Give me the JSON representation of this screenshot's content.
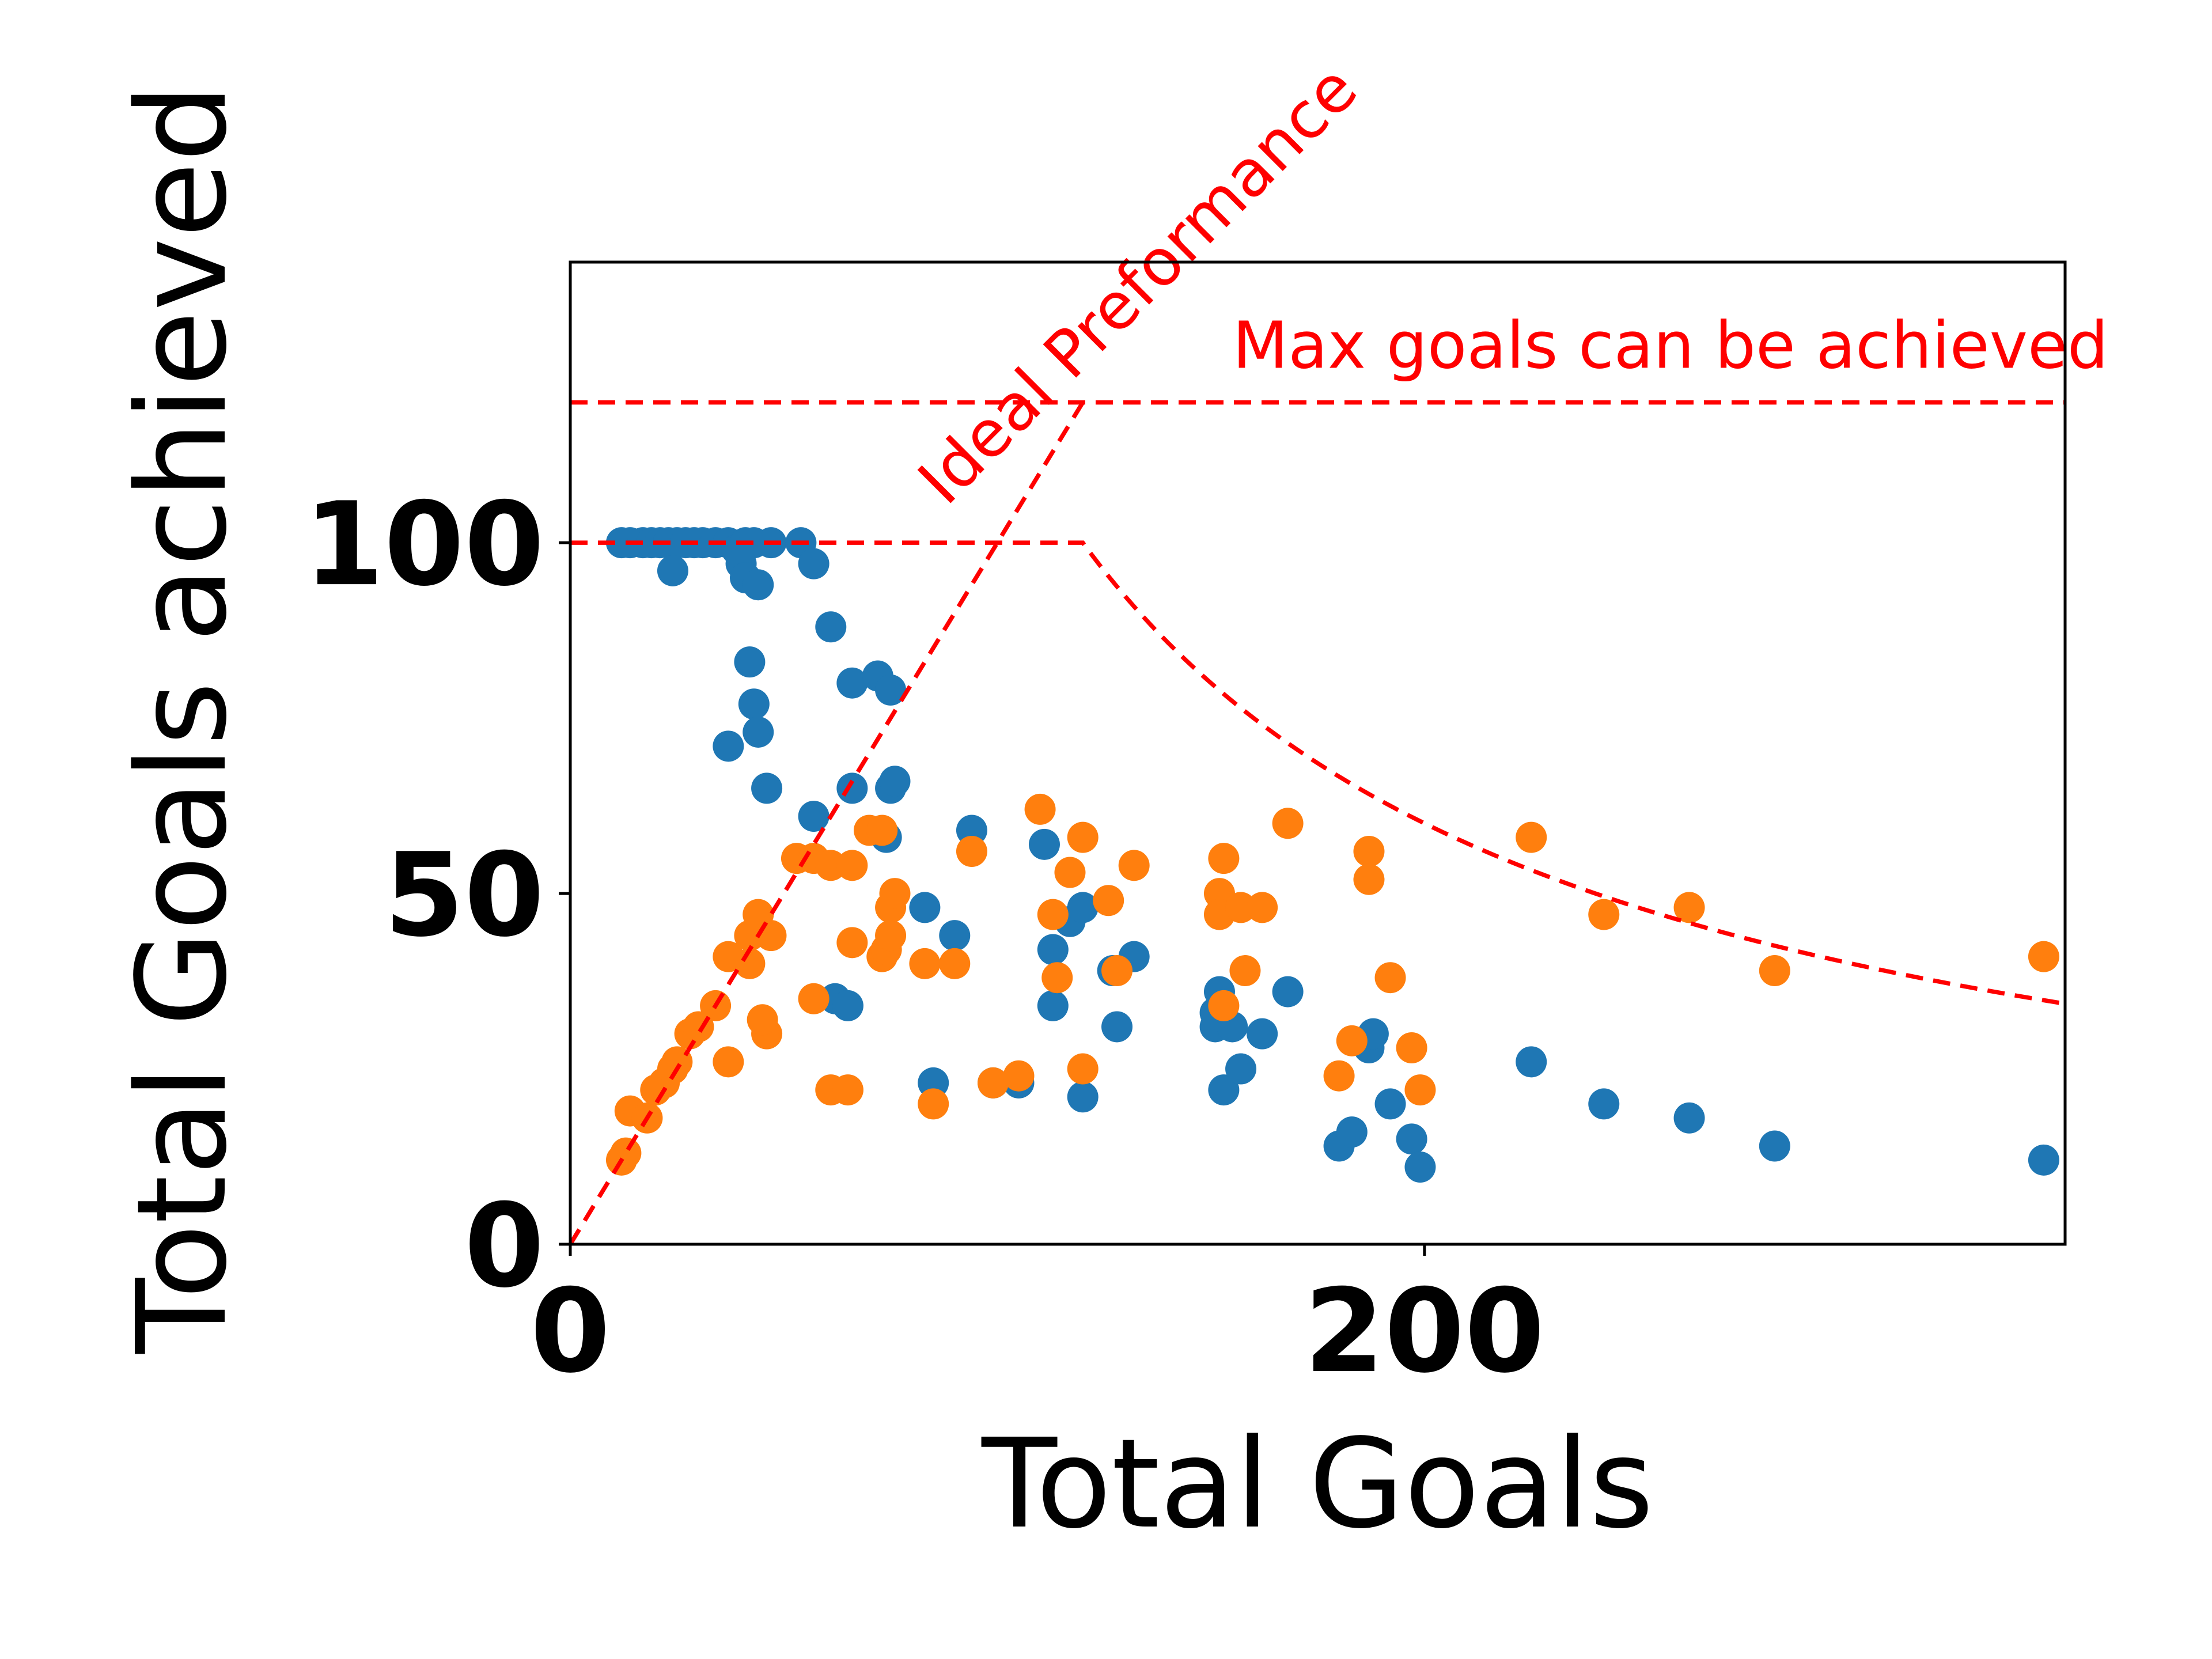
{
  "chart_data": {
    "type": "scatter",
    "title": "",
    "xlabel": "Total Goals",
    "ylabel": "Total Goals achieved",
    "xlim": [
      0,
      350
    ],
    "ylim": [
      0,
      140
    ],
    "xticks": [
      "0",
      "200"
    ],
    "xtick_values": [
      0,
      200
    ],
    "yticks": [
      "0",
      "50",
      "100"
    ],
    "ytick_values": [
      0,
      50,
      100
    ],
    "grid": false,
    "colors": {
      "series1": "#1f77b4",
      "series2": "#ff7f0e",
      "reference": "#ff0000"
    },
    "series": [
      {
        "color": "#1f77b4",
        "points": [
          [
            12,
            100
          ],
          [
            14,
            100
          ],
          [
            17,
            100
          ],
          [
            19,
            100
          ],
          [
            21,
            100
          ],
          [
            23,
            100
          ],
          [
            25,
            100
          ],
          [
            27,
            100
          ],
          [
            29,
            100
          ],
          [
            31,
            100
          ],
          [
            34,
            100
          ],
          [
            37,
            100
          ],
          [
            39,
            99
          ],
          [
            41,
            100
          ],
          [
            43,
            100
          ],
          [
            47,
            100
          ],
          [
            54,
            100
          ],
          [
            24,
            96
          ],
          [
            40,
            97
          ],
          [
            41,
            95
          ],
          [
            44,
            94
          ],
          [
            57,
            97
          ],
          [
            61,
            88
          ],
          [
            42,
            83
          ],
          [
            43,
            77
          ],
          [
            44,
            73
          ],
          [
            37,
            71
          ],
          [
            46,
            65
          ],
          [
            66,
            80
          ],
          [
            72,
            81
          ],
          [
            75,
            79
          ],
          [
            66,
            65
          ],
          [
            75,
            65
          ],
          [
            76,
            66
          ],
          [
            57,
            61
          ],
          [
            74,
            58
          ],
          [
            62,
            35
          ],
          [
            65,
            34
          ],
          [
            83,
            48
          ],
          [
            90,
            44
          ],
          [
            94,
            59
          ],
          [
            85,
            23
          ],
          [
            99,
            23
          ],
          [
            105,
            23
          ],
          [
            111,
            57
          ],
          [
            113,
            42
          ],
          [
            113,
            34
          ],
          [
            117,
            46
          ],
          [
            120,
            48
          ],
          [
            120,
            21
          ],
          [
            127,
            39
          ],
          [
            128,
            31
          ],
          [
            132,
            41
          ],
          [
            152,
            36
          ],
          [
            151,
            33
          ],
          [
            151,
            31
          ],
          [
            155,
            31
          ],
          [
            153,
            22
          ],
          [
            157,
            25
          ],
          [
            162,
            30
          ],
          [
            168,
            36
          ],
          [
            180,
            14
          ],
          [
            183,
            16
          ],
          [
            187,
            28
          ],
          [
            188,
            30
          ],
          [
            192,
            20
          ],
          [
            197,
            15
          ],
          [
            199,
            11
          ],
          [
            225,
            26
          ],
          [
            242,
            20
          ],
          [
            262,
            18
          ],
          [
            282,
            14
          ],
          [
            345,
            12
          ]
        ]
      },
      {
        "color": "#ff7f0e",
        "points": [
          [
            12,
            12
          ],
          [
            13,
            13
          ],
          [
            14,
            19
          ],
          [
            18,
            18
          ],
          [
            20,
            22
          ],
          [
            22,
            23
          ],
          [
            24,
            25
          ],
          [
            25,
            26
          ],
          [
            28,
            30
          ],
          [
            30,
            31
          ],
          [
            34,
            34
          ],
          [
            37,
            41
          ],
          [
            37,
            26
          ],
          [
            42,
            40
          ],
          [
            42,
            44
          ],
          [
            44,
            47
          ],
          [
            47,
            44
          ],
          [
            46,
            30
          ],
          [
            45,
            32
          ],
          [
            53,
            55
          ],
          [
            57,
            55
          ],
          [
            61,
            54
          ],
          [
            66,
            54
          ],
          [
            57,
            35
          ],
          [
            61,
            22
          ],
          [
            65,
            22
          ],
          [
            66,
            43
          ],
          [
            70,
            59
          ],
          [
            73,
            59
          ],
          [
            73,
            41
          ],
          [
            74,
            42
          ],
          [
            75,
            44
          ],
          [
            75,
            48
          ],
          [
            76,
            50
          ],
          [
            83,
            40
          ],
          [
            85,
            20
          ],
          [
            90,
            40
          ],
          [
            94,
            56
          ],
          [
            99,
            23
          ],
          [
            105,
            24
          ],
          [
            110,
            62
          ],
          [
            113,
            47
          ],
          [
            114,
            38
          ],
          [
            117,
            53
          ],
          [
            120,
            25
          ],
          [
            120,
            58
          ],
          [
            126,
            49
          ],
          [
            128,
            39
          ],
          [
            132,
            54
          ],
          [
            152,
            50
          ],
          [
            152,
            47
          ],
          [
            153,
            55
          ],
          [
            157,
            48
          ],
          [
            158,
            39
          ],
          [
            162,
            48
          ],
          [
            168,
            60
          ],
          [
            153,
            34
          ],
          [
            180,
            24
          ],
          [
            183,
            29
          ],
          [
            187,
            56
          ],
          [
            187,
            52
          ],
          [
            192,
            38
          ],
          [
            197,
            28
          ],
          [
            199,
            22
          ],
          [
            225,
            58
          ],
          [
            242,
            47
          ],
          [
            262,
            48
          ],
          [
            282,
            39
          ],
          [
            345,
            41
          ]
        ]
      }
    ],
    "reference_lines": [
      {
        "label": "Ideal Preformance",
        "kind": "diagonal",
        "points": [
          [
            0,
            0
          ],
          [
            120,
            120
          ]
        ]
      },
      {
        "label": "Max goals can be achieved",
        "kind": "horizontal",
        "y": 120
      },
      {
        "kind": "capped-curve",
        "cap": 100,
        "knee_x": 120,
        "end_x": 350
      }
    ],
    "annotations": [
      "Ideal Preformance",
      "Max goals can be achieved"
    ]
  }
}
